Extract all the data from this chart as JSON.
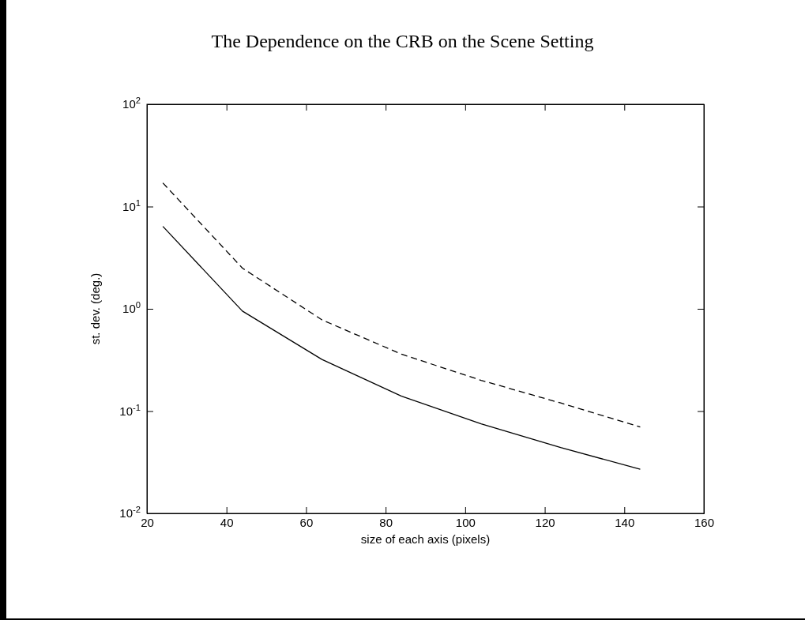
{
  "chart_data": {
    "type": "line",
    "title": "The Dependence on the CRB on the Scene Setting",
    "xlabel": "size of each axis (pixels)",
    "ylabel": "st. dev. (deg.)",
    "x": [
      24,
      44,
      64,
      84,
      104,
      124,
      144
    ],
    "series": [
      {
        "color": "#000000",
        "line_style": "solid",
        "values": [
          6.4,
          0.95,
          0.32,
          0.14,
          0.075,
          0.044,
          0.027
        ]
      },
      {
        "color": "#000000",
        "line_style": "dashed",
        "values": [
          17,
          2.5,
          0.78,
          0.36,
          0.2,
          0.12,
          0.07
        ]
      }
    ],
    "log": "y",
    "xlim": [
      20,
      160
    ],
    "xticks": [
      20,
      40,
      60,
      80,
      100,
      120,
      140,
      160
    ],
    "ylim": [
      0.01,
      100
    ],
    "yticks": [
      {
        "value": 0.01,
        "label": "10$^{-2}$"
      },
      {
        "value": 0.1,
        "label": "10$^{-1}$"
      },
      {
        "value": 1,
        "label": "10$^{0}$"
      },
      {
        "value": 10,
        "label": "10$^{1}$"
      },
      {
        "value": 100,
        "label": "10$^{2}$"
      }
    ],
    "grid": false,
    "marker": "none"
  }
}
